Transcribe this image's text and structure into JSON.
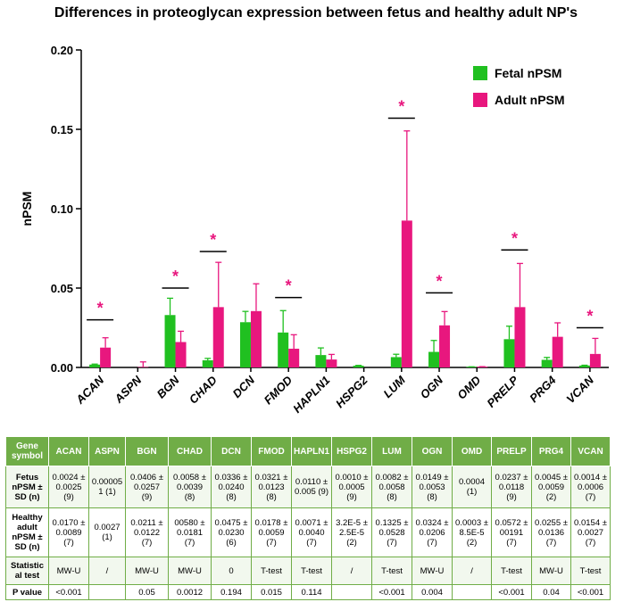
{
  "chart_data": {
    "type": "bar",
    "title": "Differences in proteoglycan expression between fetus and healthy adult NP's",
    "ylabel": "nPSM",
    "xlabel": "",
    "ylim": [
      0,
      0.2
    ],
    "yticks": [
      "0.00",
      "0.05",
      "0.10",
      "0.15",
      "0.20"
    ],
    "categories": [
      "ACAN",
      "ASPN",
      "BGN",
      "CHAD",
      "DCN",
      "FMOD",
      "HAPLN1",
      "HSPG2",
      "LUM",
      "OGN",
      "OMD",
      "PRELP",
      "PRG4",
      "VCAN"
    ],
    "series": [
      {
        "name": "Fetal nPSM",
        "color": "#20c020",
        "values": [
          0.0018,
          0.0,
          0.033,
          0.0045,
          0.0285,
          0.022,
          0.0078,
          0.0011,
          0.0065,
          0.0098,
          0.0004,
          0.0178,
          0.0048,
          0.0012
        ],
        "errors": [
          0.0003,
          0.0,
          0.0106,
          0.0012,
          0.0068,
          0.0138,
          0.0045,
          0.0002,
          0.0018,
          0.0072,
          0.0,
          0.0082,
          0.0015,
          0.0002
        ]
      },
      {
        "name": "Adult nPSM",
        "color": "#e8177e",
        "values": [
          0.0125,
          0.0003,
          0.016,
          0.038,
          0.0355,
          0.0118,
          0.005,
          0.0,
          0.0925,
          0.0265,
          0.0005,
          0.038,
          0.0193,
          0.0085
        ],
        "errors": [
          0.0062,
          0.0032,
          0.0068,
          0.0282,
          0.0172,
          0.0088,
          0.0032,
          0.0,
          0.0565,
          0.0087,
          0.0,
          0.0275,
          0.0088,
          0.0098
        ]
      }
    ],
    "significance_marker": "*",
    "significant_pairs": [
      {
        "category": "ACAN",
        "bracket_y": 0.03
      },
      {
        "category": "BGN",
        "bracket_y": 0.05
      },
      {
        "category": "CHAD",
        "bracket_y": 0.073
      },
      {
        "category": "FMOD",
        "bracket_y": 0.044
      },
      {
        "category": "LUM",
        "bracket_y": 0.157
      },
      {
        "category": "OGN",
        "bracket_y": 0.047
      },
      {
        "category": "PRELP",
        "bracket_y": 0.074
      },
      {
        "category": "VCAN",
        "bracket_y": 0.025
      }
    ],
    "legend_position": "top-right"
  },
  "table": {
    "header_label": "Gene symbol",
    "columns": [
      "ACAN",
      "ASPN",
      "BGN",
      "CHAD",
      "DCN",
      "FMOD",
      "HAPLN1",
      "HSPG2",
      "LUM",
      "OGN",
      "OMD",
      "PRELP",
      "PRG4",
      "VCAN"
    ],
    "rows": [
      {
        "label": "Fetus nPSM ± SD (n)",
        "cells": [
          "0.0024 ± 0.0025 (9)",
          "0.00005 1 (1)",
          "0.0406 ± 0.0257 (9)",
          "0.0058 ± 0.0039 (8)",
          "0.0336 ± 0.0240 (8)",
          "0.0321 ± 0.0123 (8)",
          "0.0110 ± 0.005 (9)",
          "0.0010 ± 0.0005 (9)",
          "0.0082 ± 0.0058 (8)",
          "0.0149 ± 0.0053 (8)",
          "0.0004 (1)",
          "0.0237 ± 0.0118 (9)",
          "0.0045 ± 0.0059 (2)",
          "0.0014 ± 0.0006 (7)"
        ]
      },
      {
        "label": "Healthy adult nPSM ± SD (n)",
        "cells": [
          "0.0170 ± 0.0089 (7)",
          "0.0027 (1)",
          "0.0211 ± 0.0122 (7)",
          "00580 ± 0.0181 (7)",
          "0.0475 ± 0.0230 (6)",
          "0.0178 ± 0.0059 (7)",
          "0.0071 ± 0.0040 (7)",
          "3.2E-5 ± 2.5E-5 (2)",
          "0.1325 ± 0.0528 (7)",
          "0.0324 ± 0.0206 (7)",
          "0.0003 ± 8.5E-5 (2)",
          "0.0572 ± 00191 (7)",
          "0.0255 ± 0.0136 (7)",
          "0.0154 ± 0.0027 (7)"
        ]
      },
      {
        "label": "Statistic al test",
        "cells": [
          "MW-U",
          "/",
          "MW-U",
          "MW-U",
          "0",
          "T-test",
          "T-test",
          "/",
          "T-test",
          "MW-U",
          "/",
          "T-test",
          "MW-U",
          "T-test"
        ]
      },
      {
        "label": "P value",
        "cells": [
          "<0.001",
          "",
          "0.05",
          "0.0012",
          "0.194",
          "0.015",
          "0.114",
          "",
          "<0.001",
          "0.004",
          "",
          "<0.001",
          "0.04",
          "<0.001"
        ]
      }
    ]
  }
}
